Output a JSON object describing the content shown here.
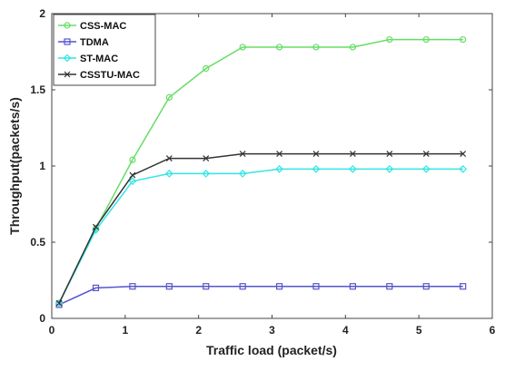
{
  "chart_data": {
    "type": "line",
    "title": "",
    "xlabel": "Traffic load (packet/s)",
    "ylabel": "Throughput(packets/s)",
    "xlim": [
      0,
      6
    ],
    "ylim": [
      0,
      2
    ],
    "xticks": [
      0,
      1,
      2,
      3,
      4,
      5,
      6
    ],
    "yticks": [
      0,
      0.5,
      1,
      1.5,
      2
    ],
    "xtick_labels": [
      "0",
      "1",
      "2",
      "3",
      "4",
      "5",
      "6"
    ],
    "ytick_labels": [
      "0",
      "0.5",
      "1",
      "1.5",
      "2"
    ],
    "grid": false,
    "legend_position": "top-left",
    "x": [
      0.1,
      0.6,
      1.1,
      1.6,
      2.1,
      2.6,
      3.1,
      3.6,
      4.1,
      4.6,
      5.1,
      5.6
    ],
    "series": [
      {
        "name": "CSS-MAC",
        "color": "#66dd66",
        "marker": "circle",
        "values": [
          0.1,
          0.59,
          1.04,
          1.45,
          1.64,
          1.78,
          1.78,
          1.78,
          1.78,
          1.83,
          1.83,
          1.83
        ]
      },
      {
        "name": "TDMA",
        "color": "#5555cc",
        "marker": "square",
        "values": [
          0.09,
          0.2,
          0.21,
          0.21,
          0.21,
          0.21,
          0.21,
          0.21,
          0.21,
          0.21,
          0.21,
          0.21
        ]
      },
      {
        "name": "ST-MAC",
        "color": "#33e5e5",
        "marker": "diamond",
        "values": [
          0.1,
          0.58,
          0.9,
          0.95,
          0.95,
          0.95,
          0.98,
          0.98,
          0.98,
          0.98,
          0.98,
          0.98
        ]
      },
      {
        "name": "CSSTU-MAC",
        "color": "#333333",
        "marker": "x",
        "values": [
          0.1,
          0.6,
          0.94,
          1.05,
          1.05,
          1.08,
          1.08,
          1.08,
          1.08,
          1.08,
          1.08,
          1.08
        ]
      }
    ]
  }
}
